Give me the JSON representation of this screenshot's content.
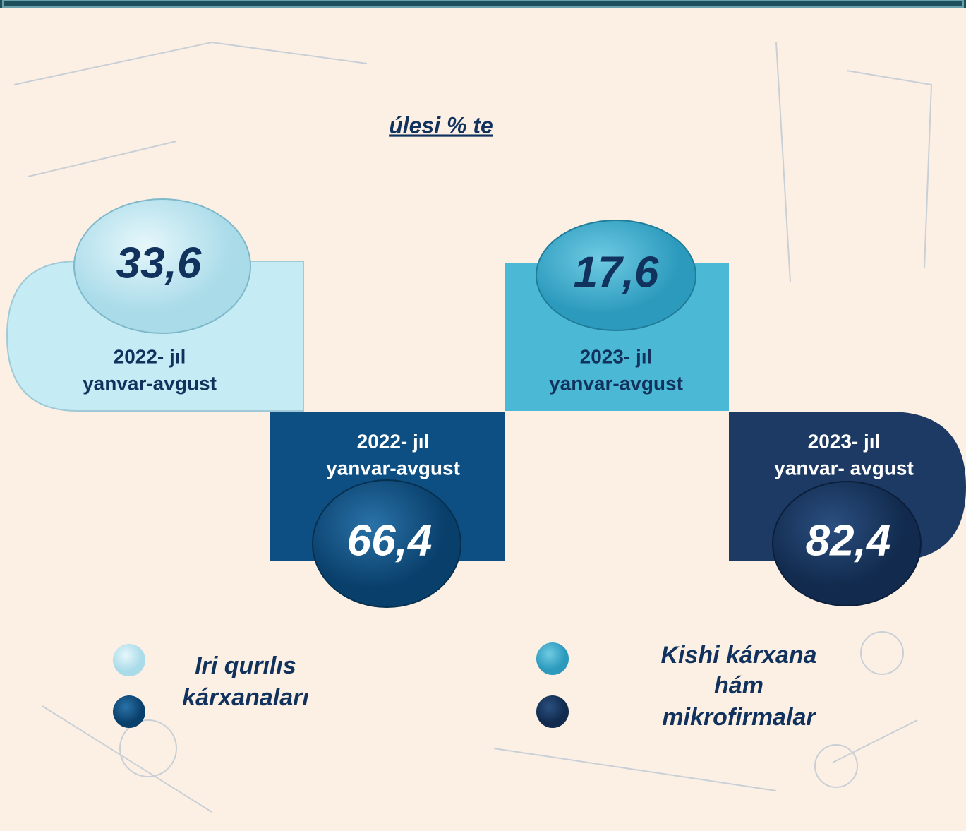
{
  "subtitle": "úlesi % te",
  "cards": [
    {
      "value": "33,6",
      "period": [
        "2022- jıl",
        "yanvar-avgust"
      ]
    },
    {
      "value": "66,4",
      "period": [
        "2022- jıl",
        "yanvar-avgust"
      ]
    },
    {
      "value": "17,6",
      "period": [
        "2023- jıl",
        "yanvar-avgust"
      ]
    },
    {
      "value": "82,4",
      "period": [
        "2023- jıl",
        "yanvar- avgust"
      ]
    }
  ],
  "legend": [
    {
      "label": [
        "Iri qurılıs",
        "kárxanaları"
      ]
    },
    {
      "label": [
        "Kishi kárxana",
        "hám",
        "mikrofirmalar"
      ]
    }
  ]
}
